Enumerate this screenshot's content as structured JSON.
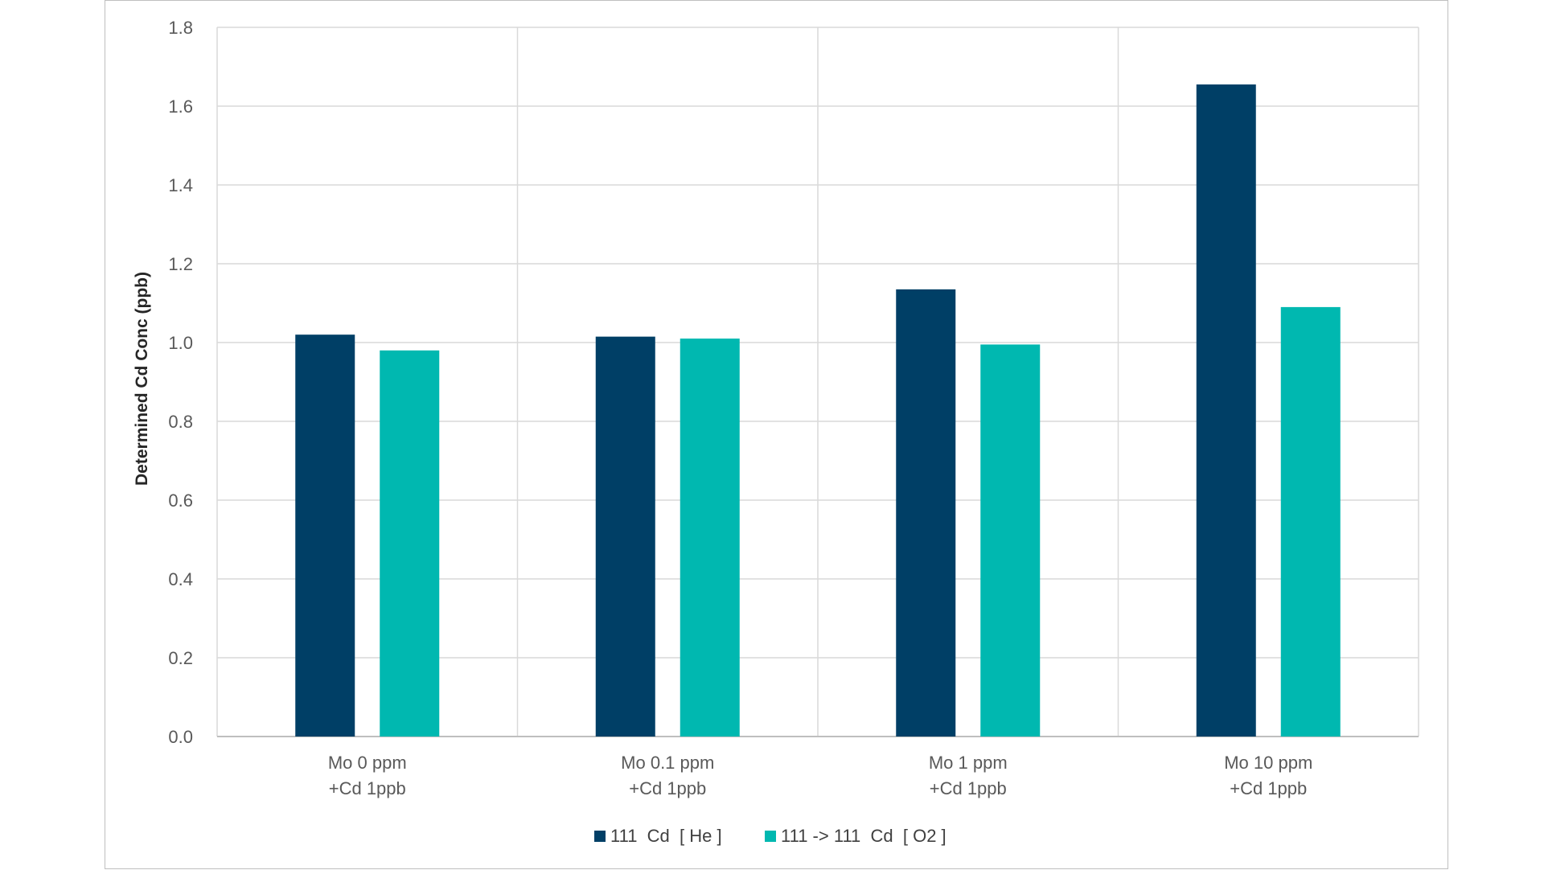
{
  "chart_data": {
    "type": "bar",
    "categories": [
      [
        "Mo 0 ppm",
        "+Cd 1ppb"
      ],
      [
        "Mo 0.1 ppm",
        "+Cd 1ppb"
      ],
      [
        "Mo 1 ppm",
        "+Cd 1ppb"
      ],
      [
        "Mo 10 ppm",
        "+Cd 1ppb"
      ]
    ],
    "series": [
      {
        "name": "111  Cd  [ He ]",
        "color": "#003f66",
        "values": [
          1.02,
          1.015,
          1.135,
          1.655
        ]
      },
      {
        "name": "111 -> 111  Cd  [ O2 ]",
        "color": "#00b8b0",
        "values": [
          0.98,
          1.01,
          0.995,
          1.09
        ]
      }
    ],
    "ylabel": "Determined Cd Conc  (ppb)",
    "ylim": [
      0,
      1.8
    ],
    "yticks": [
      "0.0",
      "0.2",
      "0.4",
      "0.6",
      "0.8",
      "1.0",
      "1.2",
      "1.4",
      "1.6",
      "1.8"
    ],
    "grid": true,
    "legend_position": "bottom"
  }
}
